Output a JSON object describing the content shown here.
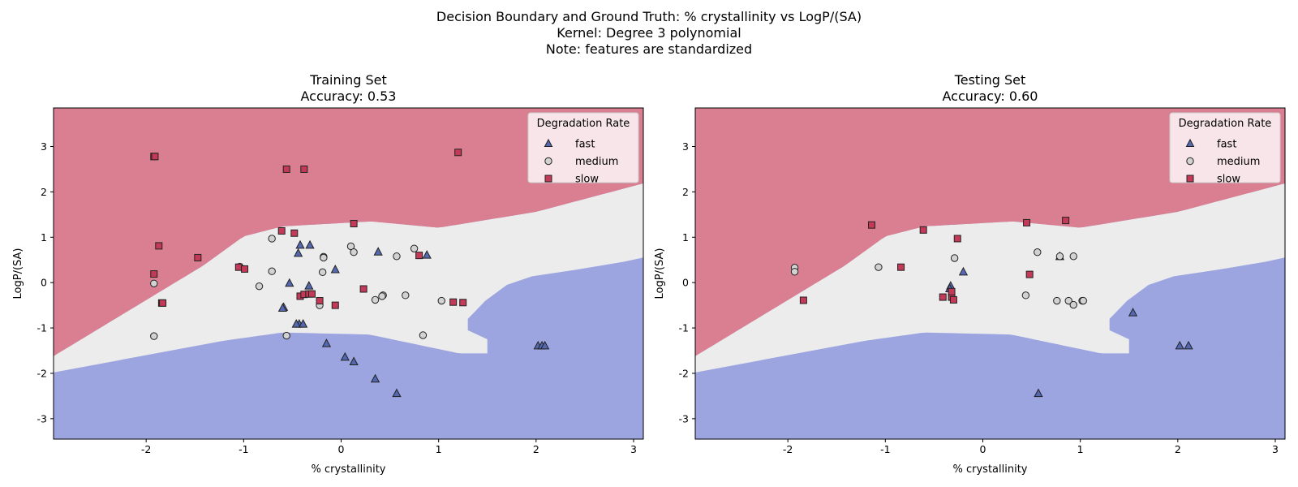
{
  "suptitle": [
    "Decision Boundary and Ground Truth: % crystallinity vs LogP/(SA)",
    "Kernel: Degree 3 polynomial",
    "Note: features are standardized"
  ],
  "colors": {
    "slow_region": "#d97f91",
    "medium_region": "#ececec",
    "fast_region": "#9ca5e0",
    "fast_marker": "#5468b0",
    "medium_marker": "#d2d2d2",
    "slow_marker": "#c23a57",
    "marker_edge": "#222222"
  },
  "chart_data": [
    {
      "type": "scatter",
      "title": [
        "Training Set",
        "Accuracy: 0.53"
      ],
      "xlabel": "% crystallinity",
      "ylabel": "LogP/(SA)",
      "xlim": [
        -2.95,
        3.1
      ],
      "ylim": [
        -3.45,
        3.85
      ],
      "xticks": [
        -2,
        -1,
        0,
        1,
        2,
        3
      ],
      "yticks": [
        -3,
        -2,
        -1,
        0,
        1,
        2,
        3
      ],
      "grid": false,
      "background": "decision regions: slow (top), medium (center band), fast (bottom and right)",
      "legend": {
        "title": "Degradation Rate",
        "placement": "top-right",
        "entries": [
          "fast",
          "medium",
          "slow"
        ]
      },
      "series": [
        {
          "name": "fast",
          "marker": "triangle",
          "points": [
            [
              -0.42,
              0.82
            ],
            [
              -0.32,
              0.82
            ],
            [
              -0.44,
              0.64
            ],
            [
              0.38,
              0.67
            ],
            [
              0.88,
              0.6
            ],
            [
              -0.53,
              -0.02
            ],
            [
              -0.33,
              -0.08
            ],
            [
              -0.06,
              0.28
            ],
            [
              -0.59,
              -0.55
            ],
            [
              -0.6,
              -0.57
            ],
            [
              -0.43,
              -0.92
            ],
            [
              -0.39,
              -0.92
            ],
            [
              -0.46,
              -0.92
            ],
            [
              -0.15,
              -1.35
            ],
            [
              0.04,
              -1.65
            ],
            [
              0.13,
              -1.75
            ],
            [
              0.35,
              -2.13
            ],
            [
              0.57,
              -2.45
            ],
            [
              2.02,
              -1.4
            ],
            [
              2.06,
              -1.4
            ],
            [
              2.09,
              -1.4
            ]
          ]
        },
        {
          "name": "medium",
          "marker": "circle",
          "points": [
            [
              -0.71,
              0.97
            ],
            [
              -0.18,
              0.57
            ],
            [
              -0.18,
              0.55
            ],
            [
              0.1,
              0.8
            ],
            [
              0.13,
              0.67
            ],
            [
              0.57,
              0.58
            ],
            [
              0.75,
              0.75
            ],
            [
              -1.04,
              0.35
            ],
            [
              -0.71,
              0.25
            ],
            [
              -0.19,
              0.23
            ],
            [
              -0.84,
              -0.08
            ],
            [
              -0.22,
              -0.5
            ],
            [
              0.35,
              -0.38
            ],
            [
              0.43,
              -0.28
            ],
            [
              0.42,
              -0.3
            ],
            [
              0.66,
              -0.28
            ],
            [
              1.03,
              -0.4
            ],
            [
              -1.92,
              -0.02
            ],
            [
              -1.92,
              -1.18
            ],
            [
              -0.56,
              -1.17
            ],
            [
              0.84,
              -1.16
            ]
          ]
        },
        {
          "name": "slow",
          "marker": "square",
          "points": [
            [
              -1.92,
              2.78
            ],
            [
              -1.91,
              2.78
            ],
            [
              -0.56,
              2.5
            ],
            [
              -0.38,
              2.5
            ],
            [
              1.2,
              2.87
            ],
            [
              -1.87,
              0.81
            ],
            [
              0.13,
              1.3
            ],
            [
              -0.61,
              1.14
            ],
            [
              -0.48,
              1.09
            ],
            [
              0.8,
              0.6
            ],
            [
              -1.47,
              0.55
            ],
            [
              -1.05,
              0.34
            ],
            [
              -0.99,
              0.3
            ],
            [
              -1.92,
              0.19
            ],
            [
              -1.84,
              -0.45
            ],
            [
              -1.83,
              -0.45
            ],
            [
              0.23,
              -0.14
            ],
            [
              -0.42,
              -0.3
            ],
            [
              -0.38,
              -0.26
            ],
            [
              -0.33,
              -0.25
            ],
            [
              -0.3,
              -0.25
            ],
            [
              -0.22,
              -0.4
            ],
            [
              -0.06,
              -0.5
            ],
            [
              1.15,
              -0.43
            ],
            [
              1.25,
              -0.44
            ]
          ]
        }
      ]
    },
    {
      "type": "scatter",
      "title": [
        "Testing Set",
        "Accuracy: 0.60"
      ],
      "xlabel": "% crystallinity",
      "ylabel": "LogP/(SA)",
      "xlim": [
        -2.95,
        3.1
      ],
      "ylim": [
        -3.45,
        3.85
      ],
      "xticks": [
        -2,
        -1,
        0,
        1,
        2,
        3
      ],
      "yticks": [
        -3,
        -2,
        -1,
        0,
        1,
        2,
        3
      ],
      "grid": false,
      "background": "decision regions: slow (top), medium (center band), fast (bottom and right)",
      "legend": {
        "title": "Degradation Rate",
        "placement": "top-right",
        "entries": [
          "fast",
          "medium",
          "slow"
        ]
      },
      "series": [
        {
          "name": "fast",
          "marker": "triangle",
          "points": [
            [
              -0.33,
              -0.08
            ],
            [
              -0.34,
              -0.14
            ],
            [
              -0.2,
              0.23
            ],
            [
              0.79,
              0.57
            ],
            [
              1.54,
              -0.67
            ],
            [
              2.02,
              -1.4
            ],
            [
              2.11,
              -1.4
            ],
            [
              0.57,
              -2.45
            ]
          ]
        },
        {
          "name": "medium",
          "marker": "circle",
          "points": [
            [
              -1.93,
              0.33
            ],
            [
              -1.93,
              0.24
            ],
            [
              -1.07,
              0.34
            ],
            [
              -0.29,
              0.54
            ],
            [
              0.56,
              0.67
            ],
            [
              0.79,
              0.58
            ],
            [
              0.93,
              0.58
            ],
            [
              0.44,
              -0.28
            ],
            [
              0.76,
              -0.4
            ],
            [
              0.88,
              -0.4
            ],
            [
              0.93,
              -0.49
            ],
            [
              1.02,
              -0.4
            ],
            [
              1.03,
              -0.4
            ]
          ]
        },
        {
          "name": "slow",
          "marker": "square",
          "points": [
            [
              -1.14,
              1.27
            ],
            [
              -0.61,
              1.16
            ],
            [
              0.45,
              1.32
            ],
            [
              0.85,
              1.37
            ],
            [
              -0.26,
              0.97
            ],
            [
              -0.84,
              0.34
            ],
            [
              0.48,
              0.18
            ],
            [
              -0.41,
              -0.32
            ],
            [
              -0.32,
              -0.32
            ],
            [
              -0.32,
              -0.2
            ],
            [
              -0.3,
              -0.38
            ],
            [
              -1.84,
              -0.39
            ]
          ]
        }
      ]
    }
  ]
}
